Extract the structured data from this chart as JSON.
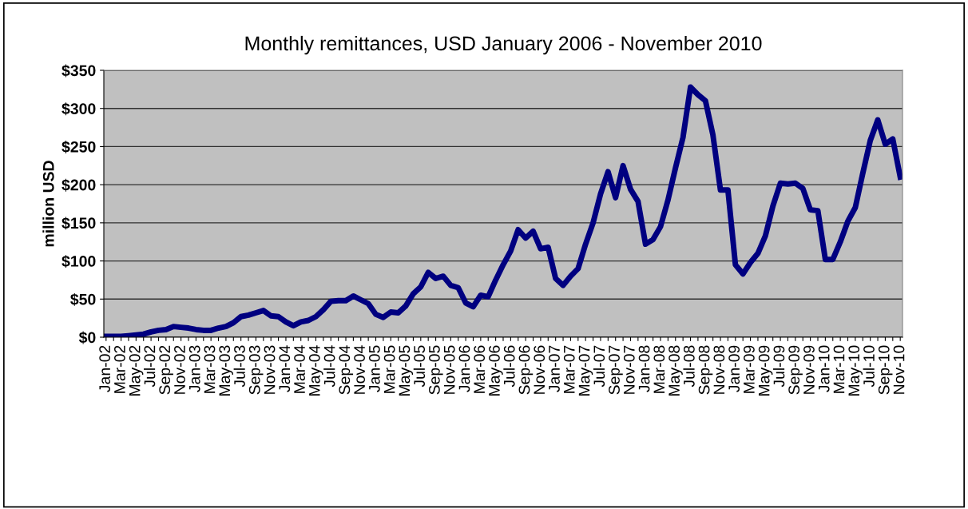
{
  "chart_data": {
    "type": "line",
    "title": "Monthly remittances, USD January 2006 - November 2010",
    "ylabel": "million USD",
    "categories": [
      "Jan-02",
      null,
      "Mar-02",
      null,
      "May-02",
      null,
      "Jul-02",
      null,
      "Sep-02",
      null,
      "Nov-02",
      null,
      "Jan-03",
      null,
      "Mar-03",
      null,
      "May-03",
      null,
      "Jul-03",
      null,
      "Sep-03",
      null,
      "Nov-03",
      null,
      "Jan-04",
      null,
      "Mar-04",
      null,
      "May-04",
      null,
      "Jul-04",
      null,
      "Sep-04",
      null,
      "Nov-04",
      null,
      "Jan-05",
      null,
      "Mar-05",
      null,
      "May-05",
      null,
      "Jul-05",
      null,
      "Sep-05",
      null,
      "Nov-05",
      null,
      "Jan-06",
      null,
      "Mar-06",
      null,
      "May-06",
      null,
      "Jul-06",
      null,
      "Sep-06",
      null,
      "Nov-06",
      null,
      "Jan-07",
      null,
      "Mar-07",
      null,
      "May-07",
      null,
      "Jul-07",
      null,
      "Sep-07",
      null,
      "Nov-07",
      null,
      "Jan-08",
      null,
      "Mar-08",
      null,
      "May-08",
      null,
      "Jul-08",
      null,
      "Sep-08",
      null,
      "Nov-08",
      null,
      "Jan-09",
      null,
      "Mar-09",
      null,
      "May-09",
      null,
      "Jul-09",
      null,
      "Sep-09",
      null,
      "Nov-09",
      null,
      "Jan-10",
      null,
      "Mar-10",
      null,
      "May-10",
      null,
      "Jul-10",
      null,
      "Sep-10",
      null,
      "Nov-10"
    ],
    "series": [
      {
        "color": "#000080",
        "values": [
          1,
          1,
          1,
          2,
          3,
          4,
          7,
          9,
          10,
          14,
          13,
          12,
          10,
          9,
          9,
          12,
          14,
          19,
          27,
          29,
          32,
          35,
          28,
          27,
          20,
          15,
          20,
          22,
          27,
          36,
          47,
          48,
          48,
          54,
          49,
          44,
          30,
          26,
          33,
          32,
          41,
          57,
          66,
          85,
          77,
          80,
          68,
          65,
          45,
          40,
          55,
          53,
          75,
          95,
          113,
          141,
          130,
          139,
          116,
          118,
          77,
          68,
          80,
          90,
          122,
          150,
          188,
          217,
          183,
          225,
          194,
          178,
          122,
          128,
          145,
          180,
          222,
          262,
          328,
          318,
          310,
          265,
          193,
          193,
          95,
          83,
          98,
          110,
          133,
          172,
          202,
          201,
          202,
          195,
          167,
          166,
          102,
          102,
          125,
          152,
          170,
          215,
          258,
          285,
          253,
          260,
          210
        ]
      }
    ],
    "ylim": [
      0,
      350
    ],
    "yticks": [
      {
        "value": 0,
        "label": "$0"
      },
      {
        "value": 50,
        "label": "$50"
      },
      {
        "value": 100,
        "label": "$100"
      },
      {
        "value": 150,
        "label": "$150"
      },
      {
        "value": 200,
        "label": "$200"
      },
      {
        "value": 250,
        "label": "$250"
      },
      {
        "value": 300,
        "label": "$300"
      },
      {
        "value": 350,
        "label": "$350"
      }
    ],
    "grid": "y",
    "marker": "none",
    "line_style": "solid"
  }
}
